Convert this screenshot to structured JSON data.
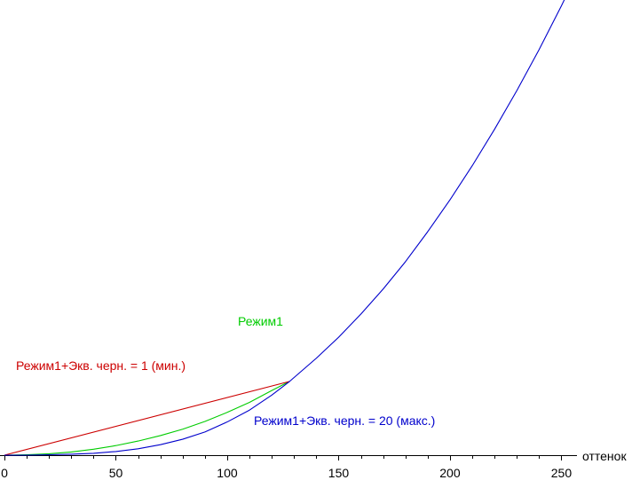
{
  "chart_data": {
    "type": "line",
    "title": "",
    "xlabel": "оттенок",
    "ylabel": "",
    "xlim": [
      0,
      255
    ],
    "ylim": [
      0,
      1
    ],
    "x_ticks": [
      0,
      50,
      100,
      150,
      200,
      250
    ],
    "x_minor_step": 10,
    "grid": false,
    "legend": "none",
    "series": [
      {
        "name": "Режим1",
        "color": "#00cc00",
        "x": [
          0,
          10,
          20,
          30,
          40,
          50,
          60,
          70,
          80,
          90,
          100,
          110,
          120,
          128
        ],
        "y": [
          0.0,
          0.001,
          0.003,
          0.007,
          0.013,
          0.021,
          0.031,
          0.043,
          0.057,
          0.074,
          0.094,
          0.116,
          0.142,
          0.162
        ]
      },
      {
        "name": "Режим1+Экв. черн. = 1 (мин.)",
        "color": "#cc0000",
        "x": [
          0,
          128
        ],
        "y": [
          0.0,
          0.162
        ]
      },
      {
        "name": "Режим1+Экв. черн. = 20 (макс.)",
        "color": "#0000cc",
        "x": [
          0,
          10,
          20,
          30,
          40,
          50,
          60,
          70,
          80,
          90,
          100,
          110,
          120,
          128,
          140,
          150,
          160,
          170,
          180,
          190,
          200,
          210,
          220,
          230,
          240,
          250,
          255
        ],
        "y": [
          0.0,
          0.0,
          0.001,
          0.002,
          0.004,
          0.008,
          0.014,
          0.023,
          0.035,
          0.051,
          0.073,
          0.099,
          0.132,
          0.162,
          0.213,
          0.259,
          0.31,
          0.365,
          0.425,
          0.491,
          0.561,
          0.636,
          0.716,
          0.801,
          0.891,
          0.987,
          1.038
        ]
      }
    ],
    "annotations": [
      {
        "text": "Режим1",
        "color": "#00cc00"
      },
      {
        "text": "Режим1+Экв. черн. = 1 (мин.)",
        "color": "#cc0000"
      },
      {
        "text": "Режим1+Экв. черн. = 20 (макс.)",
        "color": "#0000cc"
      }
    ]
  }
}
